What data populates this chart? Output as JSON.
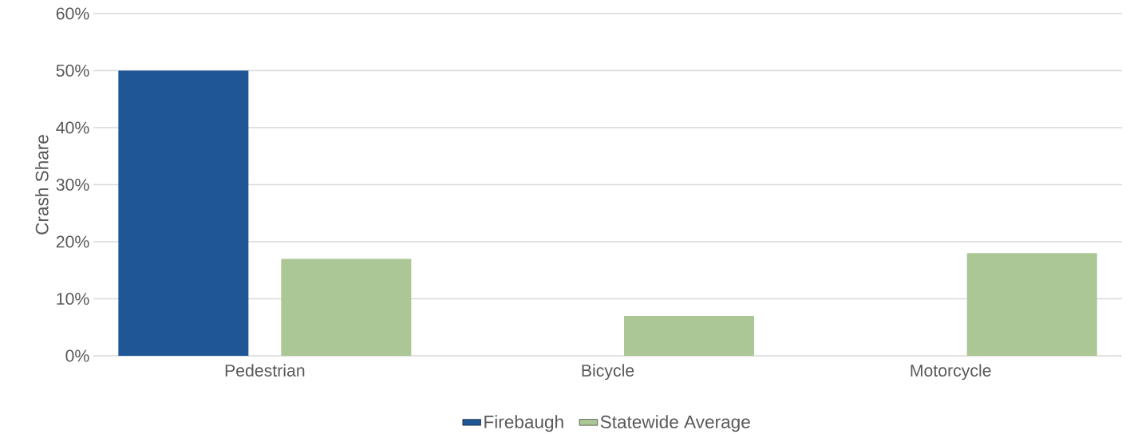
{
  "chart_data": {
    "type": "bar",
    "ylabel": "Crash Share",
    "categories": [
      "Pedestrian",
      "Bicycle",
      "Motorcycle"
    ],
    "series": [
      {
        "name": "Firebaugh",
        "color": "#1f5796",
        "values": [
          50,
          0,
          0
        ]
      },
      {
        "name": "Statewide Average",
        "color": "#aac795",
        "values": [
          17,
          7,
          18
        ]
      }
    ],
    "ylim": [
      0,
      60
    ],
    "yticks": [
      {
        "value": 0,
        "label": "0%"
      },
      {
        "value": 10,
        "label": "10%"
      },
      {
        "value": 20,
        "label": "20%"
      },
      {
        "value": 30,
        "label": "30%"
      },
      {
        "value": 40,
        "label": "40%"
      },
      {
        "value": 50,
        "label": "50%"
      },
      {
        "value": 60,
        "label": "60%"
      }
    ],
    "grid": "y",
    "legend": "bottom"
  }
}
